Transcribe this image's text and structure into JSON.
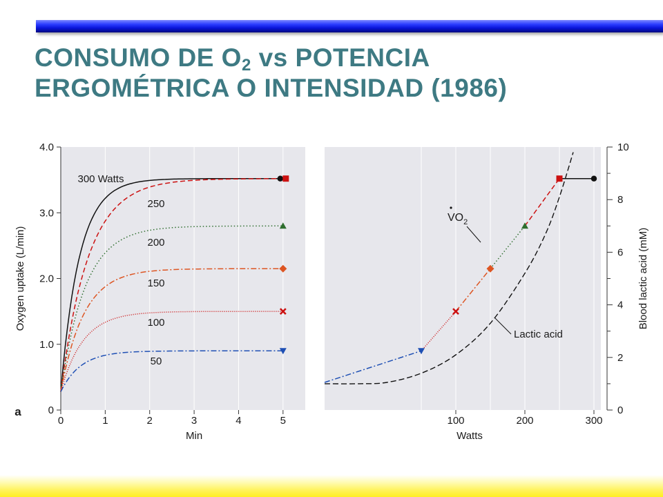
{
  "slide": {
    "title_prefix": "CONSUMO DE O",
    "title_sub": "2",
    "title_suffix": " vs POTENCIA",
    "title_line2": "ERGOMÉTRICA O INTENSIDAD (1986)",
    "accent_color": "#3e7a83"
  },
  "chart_data": [
    {
      "type": "line",
      "panel_label": "a",
      "xlabel": "Min",
      "ylabel": "Oxygen uptake (L/min)",
      "xlim": [
        0,
        5.5
      ],
      "ylim": [
        0,
        4.0
      ],
      "x_ticks": [
        "0",
        "1",
        "2",
        "3",
        "4",
        "5"
      ],
      "y_ticks": [
        "0",
        "1.0",
        "2.0",
        "3.0",
        "4.0"
      ],
      "background": "#e7e7ec",
      "series": [
        {
          "name": "300 Watts",
          "start": 0.28,
          "plateau": 3.52,
          "tau": 0.42,
          "color": "#111111",
          "style": "solid",
          "marker": "circle"
        },
        {
          "name": "250",
          "start": 0.28,
          "plateau": 3.52,
          "tau": 0.62,
          "color": "#cc1111",
          "style": "dashed",
          "marker": "square"
        },
        {
          "name": "200",
          "start": 0.28,
          "plateau": 2.8,
          "tau": 0.55,
          "color": "#2e6e2e",
          "style": "dotted",
          "marker": "triangle-up"
        },
        {
          "name": "150",
          "start": 0.28,
          "plateau": 2.15,
          "tau": 0.52,
          "color": "#dd5522",
          "style": "dashdot",
          "marker": "diamond"
        },
        {
          "name": "100",
          "start": 0.28,
          "plateau": 1.5,
          "tau": 0.5,
          "color": "#cc1111",
          "style": "dotted-fine",
          "marker": "x"
        },
        {
          "name": "50",
          "start": 0.28,
          "plateau": 0.9,
          "tau": 0.45,
          "color": "#1e4fb4",
          "style": "dashdot",
          "marker": "triangle-down"
        }
      ],
      "end_marker_x": 5.0
    },
    {
      "type": "line",
      "xlabel": "Watts",
      "ylabel_left": "",
      "ylabel_right": "Blood lactic acid (mM)",
      "xlim": [
        -90,
        310
      ],
      "ylim_left": [
        0,
        4.0
      ],
      "ylim_right": [
        0,
        10
      ],
      "x_ticks": [
        "100",
        "200",
        "300"
      ],
      "y_ticks_right": [
        "0",
        "2",
        "4",
        "6",
        "8",
        "10"
      ],
      "background": "#e7e7ec",
      "vo2_label": "VO",
      "vo2_sub": "2",
      "lactic_label": "Lactic acid",
      "vo2_series": {
        "x": [
          -90,
          50,
          100,
          150,
          200,
          250,
          300
        ],
        "y": [
          0.42,
          0.9,
          1.5,
          2.15,
          2.8,
          3.52,
          3.52
        ],
        "segment_colors": [
          "#1e4fb4",
          "#cc1111",
          "#dd5522",
          "#2e6e2e",
          "#cc1111",
          "#111111"
        ],
        "segment_styles": [
          "dashdot",
          "dotted-fine",
          "dashdot",
          "dotted",
          "dashed",
          "solid"
        ],
        "markers": [
          {
            "x": 50,
            "y": 0.9,
            "marker": "triangle-down",
            "color": "#1e4fb4"
          },
          {
            "x": 100,
            "y": 1.5,
            "marker": "x",
            "color": "#cc1111"
          },
          {
            "x": 150,
            "y": 2.15,
            "marker": "diamond",
            "color": "#dd5522"
          },
          {
            "x": 200,
            "y": 2.8,
            "marker": "triangle-up",
            "color": "#2e6e2e"
          },
          {
            "x": 250,
            "y": 3.52,
            "marker": "square",
            "color": "#cc1111"
          },
          {
            "x": 300,
            "y": 3.52,
            "marker": "circle",
            "color": "#111111"
          }
        ]
      },
      "lactic_series": {
        "x": [
          -90,
          -40,
          0,
          50,
          100,
          150,
          200,
          230,
          250,
          270
        ],
        "y": [
          1.0,
          1.0,
          1.05,
          1.4,
          2.1,
          3.3,
          5.2,
          6.7,
          8.1,
          9.8
        ]
      }
    }
  ]
}
